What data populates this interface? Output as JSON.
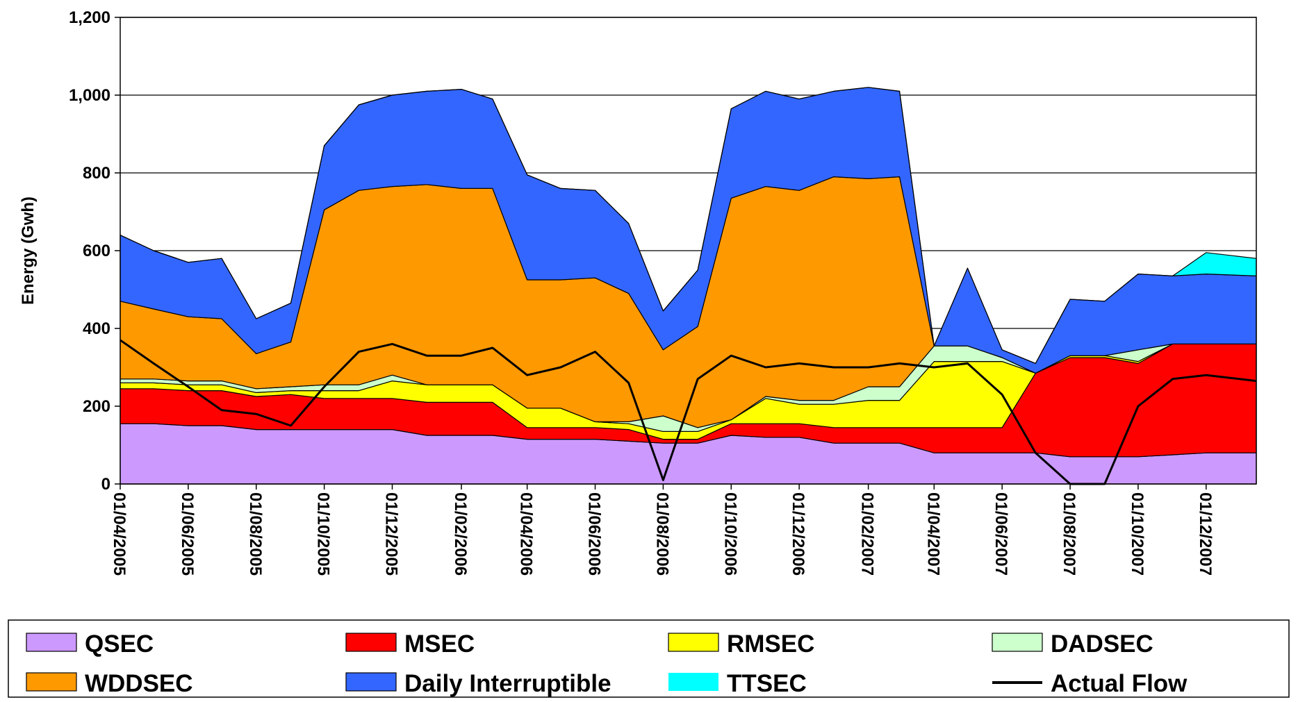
{
  "chart_data": {
    "type": "area",
    "title": "",
    "xlabel": "",
    "ylabel": "Energy (Gwh)",
    "ylim": [
      0,
      1200
    ],
    "yticks": [
      "0",
      "200",
      "400",
      "600",
      "800",
      "1,000",
      "1,200"
    ],
    "xlim": [
      "2005-04-01",
      "2008-01-15"
    ],
    "x_tick_labels": [
      "01/04/2005",
      "01/06/2005",
      "01/08/2005",
      "01/10/2005",
      "01/12/2005",
      "01/02/2006",
      "01/04/2006",
      "01/06/2006",
      "01/08/2006",
      "01/10/2006",
      "01/12/2006",
      "01/02/2007",
      "01/04/2007",
      "01/06/2007",
      "01/08/2007",
      "01/10/2007",
      "01/12/2007"
    ],
    "x_tick_dates": [
      "2005-04-01",
      "2005-06-01",
      "2005-08-01",
      "2005-10-01",
      "2005-12-01",
      "2006-02-01",
      "2006-04-01",
      "2006-06-01",
      "2006-08-01",
      "2006-10-01",
      "2006-12-01",
      "2007-02-01",
      "2007-04-01",
      "2007-06-01",
      "2007-08-01",
      "2007-10-01",
      "2007-12-01"
    ],
    "grid": "horizontal",
    "legend_position": "bottom",
    "dates": [
      "2005-04-01",
      "2005-05-01",
      "2005-06-01",
      "2005-07-01",
      "2005-08-01",
      "2005-09-01",
      "2005-10-01",
      "2005-11-01",
      "2005-12-01",
      "2006-01-01",
      "2006-02-01",
      "2006-03-01",
      "2006-04-01",
      "2006-05-01",
      "2006-06-01",
      "2006-07-01",
      "2006-08-01",
      "2006-09-01",
      "2006-10-01",
      "2006-11-01",
      "2006-12-01",
      "2007-01-01",
      "2007-02-01",
      "2007-03-01",
      "2007-04-01",
      "2007-05-01",
      "2007-06-01",
      "2007-07-01",
      "2007-08-01",
      "2007-09-01",
      "2007-10-01",
      "2007-11-01",
      "2007-12-01",
      "2008-01-15"
    ],
    "series": [
      {
        "name": "QSEC",
        "color": "#cc99ff",
        "kind": "area",
        "values": [
          155,
          155,
          150,
          150,
          140,
          140,
          140,
          140,
          140,
          125,
          125,
          125,
          115,
          115,
          115,
          110,
          105,
          105,
          125,
          120,
          120,
          105,
          105,
          105,
          80,
          80,
          80,
          80,
          70,
          70,
          70,
          75,
          80,
          80
        ]
      },
      {
        "name": "MSEC",
        "color": "#ff0000",
        "kind": "area",
        "values": [
          90,
          90,
          90,
          90,
          85,
          90,
          80,
          80,
          80,
          85,
          85,
          85,
          30,
          30,
          30,
          30,
          10,
          10,
          30,
          35,
          35,
          40,
          40,
          40,
          65,
          65,
          65,
          205,
          255,
          255,
          240,
          285,
          280,
          280
        ]
      },
      {
        "name": "RMSEC",
        "color": "#ffff00",
        "kind": "area",
        "values": [
          15,
          15,
          15,
          15,
          10,
          10,
          20,
          20,
          45,
          45,
          45,
          45,
          50,
          50,
          15,
          15,
          20,
          20,
          10,
          65,
          50,
          60,
          70,
          70,
          170,
          170,
          170,
          0,
          5,
          5,
          5,
          0,
          0,
          0
        ]
      },
      {
        "name": "DADSEC",
        "color": "#ccffcc",
        "kind": "area",
        "values": [
          10,
          10,
          10,
          10,
          10,
          10,
          15,
          15,
          15,
          0,
          0,
          0,
          0,
          0,
          0,
          5,
          40,
          10,
          0,
          5,
          10,
          10,
          35,
          35,
          40,
          40,
          10,
          0,
          0,
          0,
          30,
          0,
          0,
          0
        ]
      },
      {
        "name": "WDDSEC",
        "color": "#ff9900",
        "kind": "area",
        "values": [
          200,
          180,
          165,
          160,
          90,
          115,
          450,
          500,
          485,
          515,
          505,
          505,
          330,
          330,
          370,
          330,
          170,
          260,
          570,
          540,
          540,
          575,
          535,
          540,
          0,
          0,
          0,
          0,
          0,
          0,
          0,
          0,
          0,
          0
        ]
      },
      {
        "name": "Daily Interruptible",
        "color": "#3366ff",
        "kind": "area",
        "values": [
          170,
          150,
          140,
          155,
          90,
          100,
          165,
          220,
          235,
          240,
          255,
          230,
          270,
          235,
          225,
          180,
          100,
          145,
          230,
          245,
          235,
          220,
          235,
          220,
          0,
          200,
          20,
          25,
          145,
          140,
          195,
          175,
          180,
          175
        ]
      },
      {
        "name": "TTSEC",
        "color": "#00ffff",
        "kind": "area",
        "values": [
          0,
          0,
          0,
          0,
          0,
          0,
          0,
          0,
          0,
          0,
          0,
          0,
          0,
          0,
          0,
          0,
          0,
          0,
          0,
          0,
          0,
          0,
          0,
          0,
          0,
          0,
          0,
          0,
          0,
          0,
          0,
          0,
          55,
          45
        ]
      },
      {
        "name": "Actual Flow",
        "color": "#000000",
        "kind": "line",
        "values": [
          370,
          310,
          250,
          190,
          180,
          150,
          250,
          340,
          360,
          330,
          330,
          350,
          280,
          300,
          340,
          260,
          10,
          270,
          330,
          300,
          310,
          300,
          300,
          310,
          300,
          310,
          230,
          80,
          0,
          0,
          200,
          270,
          280,
          265
        ]
      }
    ]
  }
}
